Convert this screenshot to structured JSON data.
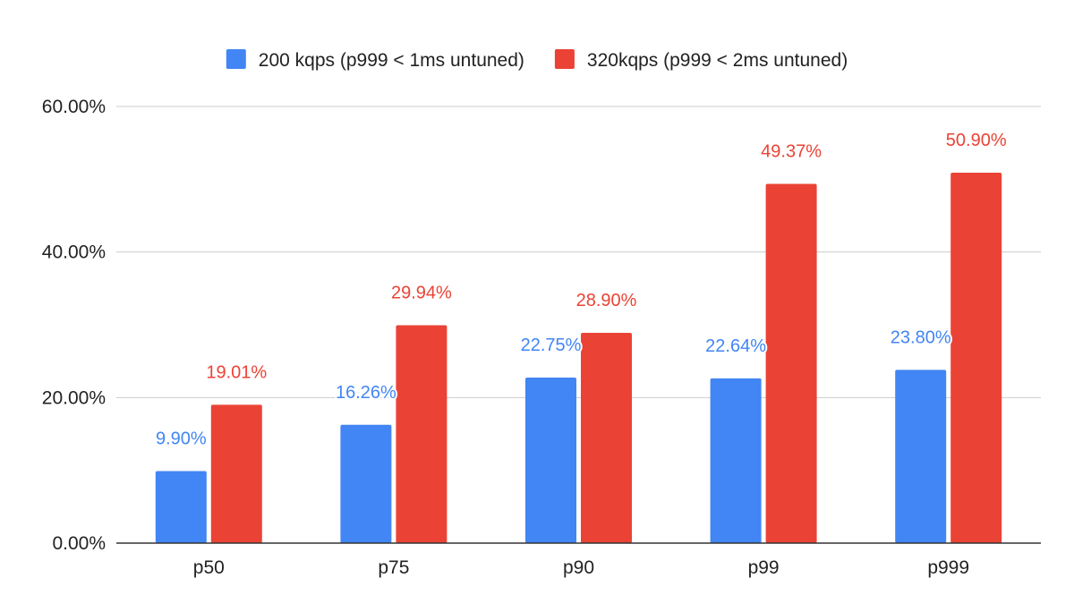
{
  "chart_data": {
    "type": "bar",
    "categories": [
      "p50",
      "p75",
      "p90",
      "p99",
      "p999"
    ],
    "series": [
      {
        "name": "200 kqps (p999 < 1ms untuned)",
        "color": "#4285f4",
        "values": [
          9.9,
          16.26,
          22.75,
          22.64,
          23.8
        ],
        "labels": [
          "9.90%",
          "16.26%",
          "22.75%",
          "22.64%",
          "23.80%"
        ]
      },
      {
        "name": "320kqps (p999 < 2ms untuned)",
        "color": "#ea4335",
        "values": [
          19.01,
          29.94,
          28.9,
          49.37,
          50.9
        ],
        "labels": [
          "19.01%",
          "29.94%",
          "28.90%",
          "49.37%",
          "50.90%"
        ]
      }
    ],
    "y_ticks": [
      0,
      20,
      40,
      60
    ],
    "y_tick_labels": [
      "0.00%",
      "20.00%",
      "40.00%",
      "60.00%"
    ],
    "ylim": [
      0,
      60
    ],
    "grid": true,
    "legend_position": "top-center",
    "title": "",
    "xlabel": "",
    "ylabel": ""
  },
  "colors": {
    "gridline": "#cccccc",
    "axis": "#333333",
    "text": "#222222"
  }
}
